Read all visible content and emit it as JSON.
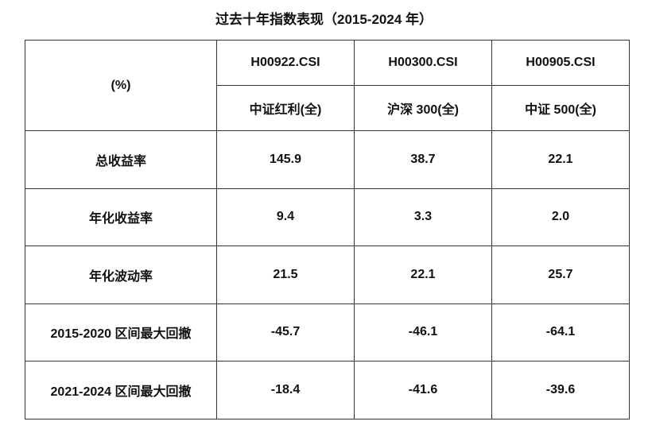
{
  "header": {
    "title": "过去十年指数表现（2015-2024 年）"
  },
  "table": {
    "corner": "(%)",
    "codes": [
      "H00922.CSI",
      "H00300.CSI",
      "H00905.CSI"
    ],
    "names": [
      "中证红利(全)",
      "沪深 300(全)",
      "中证 500(全)"
    ],
    "rows": [
      [
        "总收益率",
        "145.9",
        "38.7",
        "22.1"
      ],
      [
        "年化收益率",
        "9.4",
        "3.3",
        "2.0"
      ],
      [
        "年化波动率",
        "21.5",
        "22.1",
        "25.7"
      ],
      [
        "2015-2020 区间最大回撤",
        "-45.7",
        "-46.1",
        "-64.1"
      ],
      [
        "2021-2024 区间最大回撤",
        "-18.4",
        "-41.6",
        "-39.6"
      ]
    ]
  }
}
